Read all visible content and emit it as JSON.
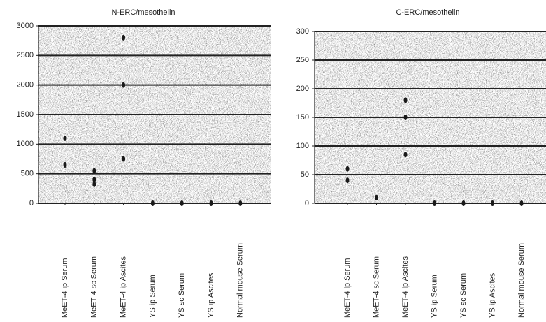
{
  "chart_data": [
    {
      "type": "strip",
      "title": "N-ERC/mesothelin",
      "categories": [
        "MeET-4 ip Serum",
        "MeET-4 sc Serum",
        "MeET-4 ip Ascites",
        "YS ip Serum",
        "YS sc Serum",
        "YS ip Ascites",
        "Normal mouse Serum"
      ],
      "values": [
        [
          1100,
          650
        ],
        [
          550,
          400,
          320
        ],
        [
          2800,
          2000,
          750
        ],
        [
          0
        ],
        [
          0
        ],
        [
          0
        ],
        [
          0
        ]
      ],
      "color": "#1a1a1a",
      "ylim": [
        0,
        3000
      ],
      "yticks": [
        0,
        500,
        1000,
        1500,
        2000,
        2500,
        3000
      ],
      "grid": true
    },
    {
      "type": "strip",
      "title": "C-ERC/mesothelin",
      "categories": [
        "MeET-4 ip Serum",
        "MeET-4 sc Serum",
        "MeET-4 ip Ascites",
        "YS ip Serum",
        "YS sc Serum",
        "YS ip Ascites",
        "Normal mouse Serum"
      ],
      "values": [
        [
          60,
          40
        ],
        [
          10
        ],
        [
          180,
          150,
          85
        ],
        [
          0
        ],
        [
          0
        ],
        [
          0
        ],
        [
          0
        ]
      ],
      "color": "#1a1a1a",
      "ylim": [
        0,
        300
      ],
      "yticks": [
        0,
        50,
        100,
        150,
        200,
        250,
        300
      ],
      "grid": true
    }
  ]
}
